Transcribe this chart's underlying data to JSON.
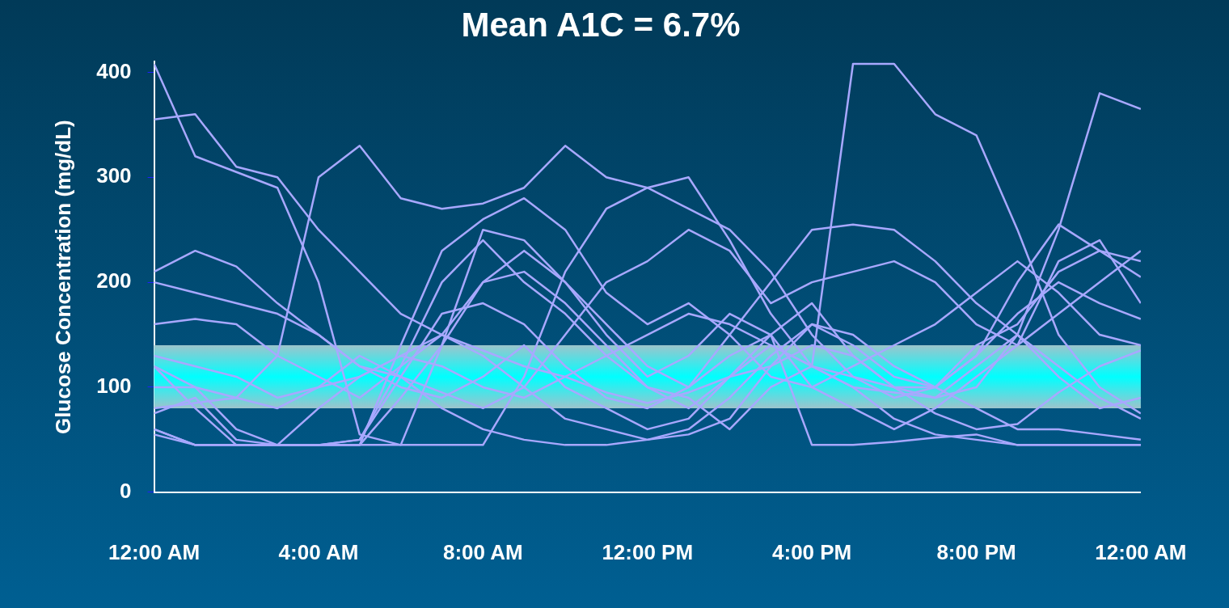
{
  "chart_data": {
    "type": "line",
    "title": "Mean A1C = 6.7%",
    "ylabel": "Glucose Concentration (mg/dL)",
    "x": [
      0,
      1,
      2,
      3,
      4,
      5,
      6,
      7,
      8,
      9,
      10,
      11,
      12,
      13,
      14,
      15,
      16,
      17,
      18,
      19,
      20,
      21,
      22,
      23,
      24
    ],
    "xlim": [
      0,
      24
    ],
    "xticks": [
      {
        "value": 0,
        "label": "12:00 AM"
      },
      {
        "value": 4,
        "label": "4:00 AM"
      },
      {
        "value": 8,
        "label": "8:00 AM"
      },
      {
        "value": 12,
        "label": "12:00 PM"
      },
      {
        "value": 16,
        "label": "4:00 PM"
      },
      {
        "value": 20,
        "label": "8:00 PM"
      },
      {
        "value": 24,
        "label": "12:00 AM"
      }
    ],
    "ylim": [
      0,
      410
    ],
    "yticks": [
      0,
      100,
      200,
      300,
      400
    ],
    "grid": false,
    "legend": false,
    "marker": "none",
    "line_style": "solid",
    "bands": [
      {
        "axis": "y",
        "from": 80,
        "to": 140,
        "color": "#00ffff"
      }
    ],
    "series": [
      {
        "color": "#a8a8ff",
        "values": [
          408,
          320,
          305,
          290,
          200,
          55,
          45,
          45,
          45,
          110,
          210,
          270,
          290,
          300,
          240,
          170,
          120,
          100,
          95,
          90,
          120,
          150,
          110,
          80,
          90
        ]
      },
      {
        "color": "#a8a8ff",
        "values": [
          355,
          360,
          310,
          300,
          250,
          210,
          170,
          150,
          135,
          120,
          110,
          95,
          85,
          95,
          110,
          120,
          140,
          130,
          100,
          75,
          60,
          65,
          95,
          120,
          135
        ]
      },
      {
        "color": "#a8a8ff",
        "values": [
          160,
          165,
          160,
          130,
          300,
          330,
          280,
          270,
          275,
          290,
          330,
          300,
          290,
          270,
          250,
          210,
          150,
          110,
          90,
          100,
          130,
          200,
          255,
          230,
          205
        ]
      },
      {
        "color": "#a8a8ff",
        "values": [
          210,
          230,
          215,
          180,
          150,
          120,
          110,
          95,
          80,
          100,
          150,
          200,
          220,
          250,
          230,
          180,
          200,
          210,
          220,
          200,
          160,
          140,
          170,
          200,
          230
        ]
      },
      {
        "color": "#a8a8ff",
        "values": [
          120,
          80,
          45,
          45,
          80,
          110,
          130,
          150,
          200,
          230,
          200,
          160,
          120,
          100,
          150,
          200,
          250,
          255,
          250,
          220,
          180,
          150,
          120,
          90,
          70
        ]
      },
      {
        "color": "#a8a8ff",
        "values": [
          75,
          90,
          50,
          45,
          45,
          45,
          90,
          140,
          200,
          210,
          180,
          140,
          100,
          80,
          110,
          150,
          180,
          130,
          100,
          100,
          130,
          170,
          200,
          180,
          165
        ]
      },
      {
        "color": "#a8a8ff",
        "values": [
          60,
          45,
          45,
          45,
          45,
          45,
          45,
          140,
          250,
          240,
          200,
          150,
          110,
          130,
          170,
          150,
          100,
          80,
          60,
          80,
          110,
          140,
          220,
          240,
          180
        ]
      },
      {
        "color": "#a8a8ff",
        "values": [
          200,
          190,
          180,
          170,
          150,
          120,
          100,
          90,
          110,
          140,
          100,
          80,
          60,
          70,
          110,
          140,
          120,
          100,
          70,
          55,
          50,
          45,
          45,
          45,
          45
        ]
      },
      {
        "color": "#a8a8ff",
        "values": [
          80,
          85,
          90,
          80,
          100,
          130,
          110,
          80,
          60,
          50,
          45,
          45,
          50,
          60,
          90,
          130,
          160,
          140,
          110,
          100,
          140,
          160,
          210,
          230,
          220
        ]
      },
      {
        "color": "#a8a8ff",
        "values": [
          55,
          45,
          45,
          45,
          45,
          50,
          110,
          170,
          180,
          160,
          120,
          90,
          80,
          100,
          130,
          150,
          45,
          45,
          48,
          52,
          55,
          45,
          45,
          45,
          45
        ]
      },
      {
        "color": "#a8a8ff",
        "values": [
          100,
          100,
          90,
          130,
          110,
          90,
          120,
          150,
          130,
          100,
          70,
          60,
          50,
          55,
          70,
          120,
          160,
          150,
          120,
          100,
          80,
          60,
          60,
          55,
          50
        ]
      },
      {
        "color": "#a8a8ff",
        "values": [
          60,
          45,
          45,
          45,
          45,
          45,
          140,
          230,
          260,
          280,
          250,
          190,
          160,
          180,
          150,
          110,
          100,
          120,
          140,
          160,
          190,
          220,
          190,
          150,
          140
        ]
      },
      {
        "color": "#a8a8ff",
        "values": [
          120,
          100,
          60,
          45,
          45,
          50,
          120,
          200,
          240,
          200,
          170,
          130,
          100,
          90,
          60,
          100,
          120,
          408,
          408,
          360,
          340,
          250,
          150,
          100,
          75
        ]
      },
      {
        "color": "#a8a8ff",
        "values": [
          130,
          120,
          110,
          90,
          100,
          110,
          130,
          120,
          100,
          90,
          110,
          130,
          150,
          170,
          160,
          140,
          120,
          110,
          100,
          90,
          100,
          150,
          250,
          380,
          365
        ]
      }
    ]
  }
}
